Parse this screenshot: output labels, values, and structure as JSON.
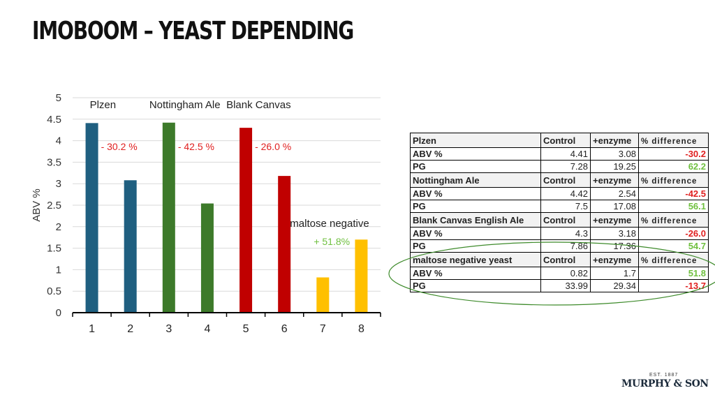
{
  "page": {
    "title": "IMOBOOM – YEAST DEPENDING"
  },
  "chart_data": {
    "type": "bar",
    "categories": [
      "1",
      "2",
      "3",
      "4",
      "5",
      "6",
      "7",
      "8"
    ],
    "values": [
      4.41,
      3.08,
      4.42,
      2.54,
      4.3,
      3.18,
      0.82,
      1.7
    ],
    "bar_colors": [
      "#1f5f80",
      "#1f5f80",
      "#3d7a2a",
      "#3d7a2a",
      "#c00000",
      "#c00000",
      "#ffc000",
      "#ffc000"
    ],
    "ylabel": "ABV %",
    "xlabel": "",
    "ylim": [
      0,
      5
    ],
    "yticks": [
      "0",
      "0.5",
      "1",
      "1.5",
      "2",
      "2.5",
      "3",
      "3.5",
      "4",
      "4.5",
      "5"
    ],
    "grid": true,
    "group_labels": [
      {
        "text": "Plzen",
        "category": "1"
      },
      {
        "text": "Nottingham Ale",
        "category": "3"
      },
      {
        "text": "Blank Canvas",
        "category": "5"
      },
      {
        "text": "maltose negative",
        "category": "7"
      }
    ],
    "annotations": [
      {
        "text": "- 30.2 %",
        "color": "#e02020",
        "category": "1"
      },
      {
        "text": "- 42.5 %",
        "color": "#e02020",
        "category": "3"
      },
      {
        "text": "- 26.0 %",
        "color": "#e02020",
        "category": "5"
      },
      {
        "text": "+ 51.8%",
        "color": "#70c040",
        "category": "7"
      }
    ]
  },
  "table": {
    "col_control": "Control",
    "col_enzyme": "+enzyme",
    "col_diff": "% difference",
    "groups": [
      {
        "name": "Plzen",
        "abv_label": "ABV  %",
        "abv_control": "4.41",
        "abv_enzyme": "3.08",
        "abv_diff": "-30.2",
        "pg_label": "PG",
        "pg_control": "7.28",
        "pg_enzyme": "19.25",
        "pg_diff": "62.2"
      },
      {
        "name": "Nottingham Ale",
        "abv_label": "ABV  %",
        "abv_control": "4.42",
        "abv_enzyme": "2.54",
        "abv_diff": "-42.5",
        "pg_label": "PG",
        "pg_control": "7.5",
        "pg_enzyme": "17.08",
        "pg_diff": "56.1"
      },
      {
        "name": "Blank Canvas English Ale",
        "abv_label": "ABV  %",
        "abv_control": "4.3",
        "abv_enzyme": "3.18",
        "abv_diff": "-26.0",
        "pg_label": "PG",
        "pg_control": "7.86",
        "pg_enzyme": "17.36",
        "pg_diff": "54.7"
      },
      {
        "name": "maltose negative yeast",
        "abv_label": "ABV  %",
        "abv_control": "0.82",
        "abv_enzyme": "1.7",
        "abv_diff": "51.8",
        "pg_label": "PG",
        "pg_control": "33.99",
        "pg_enzyme": "29.34",
        "pg_diff": "-13.7"
      }
    ],
    "highlight_color": "#3d8a2a"
  },
  "logo": {
    "est": "EST. 1887",
    "name": "MURPHY & SON"
  }
}
